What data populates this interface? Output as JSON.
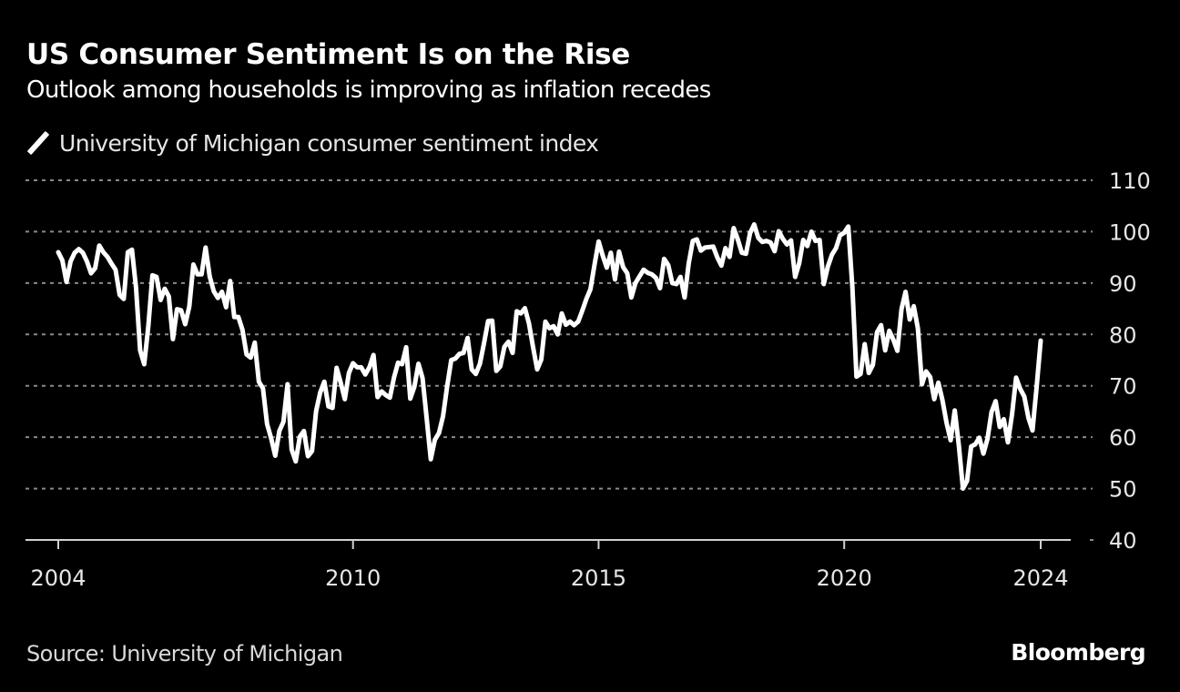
{
  "header": {
    "title": "US Consumer Sentiment Is on the Rise",
    "subtitle": "Outlook among households is improving as inflation recedes"
  },
  "legend": {
    "icon": "line-swatch-icon",
    "label": "University of Michigan consumer sentiment index"
  },
  "footer": {
    "source": "Source: University of Michigan",
    "brand": "Bloomberg"
  },
  "colors": {
    "background": "#000000",
    "line": "#ffffff",
    "grid": "#8a8a8a",
    "axis": "#d0d0d0"
  },
  "chart_data": {
    "type": "line",
    "title": "US Consumer Sentiment Is on the Rise",
    "subtitle": "Outlook among households is improving as inflation recedes",
    "xlabel": "",
    "ylabel": "",
    "ylim": [
      40,
      110
    ],
    "yticks": [
      40,
      50,
      60,
      70,
      80,
      90,
      100,
      110
    ],
    "xticks": [
      2004,
      2010,
      2015,
      2020,
      2024
    ],
    "xlim": [
      2004.0,
      2024.0
    ],
    "grid": true,
    "y_axis_side": "right",
    "legend_position": "top-left",
    "series": [
      {
        "name": "University of Michigan consumer sentiment index",
        "start": "2004-01",
        "frequency": "monthly",
        "values": [
          96.0,
          94.4,
          90.2,
          94.2,
          95.9,
          96.6,
          95.9,
          94.2,
          91.9,
          92.9,
          97.3,
          96.0,
          95.1,
          93.8,
          92.6,
          87.7,
          86.9,
          96.0,
          96.5,
          89.1,
          76.9,
          74.2,
          81.6,
          91.5,
          91.2,
          86.7,
          88.9,
          87.4,
          79.1,
          84.9,
          84.7,
          82.0,
          85.4,
          93.6,
          91.7,
          91.7,
          96.9,
          91.3,
          88.4,
          87.1,
          88.3,
          85.3,
          90.4,
          83.4,
          83.4,
          80.9,
          76.1,
          75.5,
          78.4,
          70.8,
          69.5,
          62.6,
          59.8,
          56.4,
          61.2,
          63.0,
          70.3,
          57.6,
          55.3,
          60.1,
          61.2,
          56.3,
          57.3,
          65.1,
          68.7,
          70.8,
          66.0,
          65.7,
          73.5,
          70.6,
          67.4,
          72.5,
          74.4,
          73.6,
          73.6,
          72.2,
          73.6,
          76.0,
          67.8,
          68.9,
          68.2,
          67.7,
          71.6,
          74.5,
          74.2,
          77.5,
          67.5,
          69.8,
          74.3,
          71.5,
          63.7,
          55.7,
          59.5,
          60.8,
          64.1,
          69.9,
          75.0,
          75.3,
          76.2,
          76.4,
          79.3,
          73.2,
          72.3,
          74.3,
          78.3,
          82.6,
          82.7,
          72.9,
          73.8,
          77.6,
          78.6,
          76.4,
          84.5,
          84.1,
          85.1,
          82.1,
          77.5,
          73.2,
          75.1,
          82.5,
          81.2,
          81.6,
          80.0,
          84.1,
          81.9,
          82.5,
          81.8,
          82.5,
          84.6,
          86.9,
          88.8,
          93.6,
          98.1,
          95.4,
          93.0,
          95.9,
          90.7,
          96.1,
          93.1,
          91.9,
          87.2,
          90.0,
          91.3,
          92.6,
          92.0,
          91.7,
          91.0,
          89.0,
          94.7,
          93.5,
          90.0,
          89.8,
          91.2,
          87.2,
          93.8,
          98.2,
          98.5,
          96.3,
          96.9,
          97.0,
          97.1,
          95.0,
          93.4,
          96.8,
          95.1,
          100.7,
          98.5,
          95.9,
          95.7,
          99.7,
          101.4,
          98.8,
          98.0,
          98.2,
          97.9,
          96.2,
          100.1,
          98.6,
          97.5,
          98.3,
          91.2,
          93.8,
          98.4,
          97.2,
          100.0,
          98.2,
          98.4,
          89.8,
          93.2,
          95.5,
          96.8,
          99.3,
          99.8,
          101.0,
          89.1,
          71.8,
          72.3,
          78.1,
          72.5,
          74.1,
          80.4,
          81.8,
          76.9,
          80.7,
          79.0,
          76.8,
          84.9,
          88.3,
          82.9,
          85.5,
          81.2,
          70.3,
          72.8,
          71.7,
          67.4,
          70.6,
          67.2,
          62.8,
          59.4,
          65.2,
          58.4,
          50.0,
          51.5,
          58.2,
          58.6,
          59.9,
          56.8,
          59.7,
          64.9,
          67.0,
          62.0,
          63.5,
          59.0,
          64.4,
          71.6,
          69.4,
          67.9,
          63.8,
          61.3,
          69.7,
          78.8
        ]
      }
    ]
  }
}
